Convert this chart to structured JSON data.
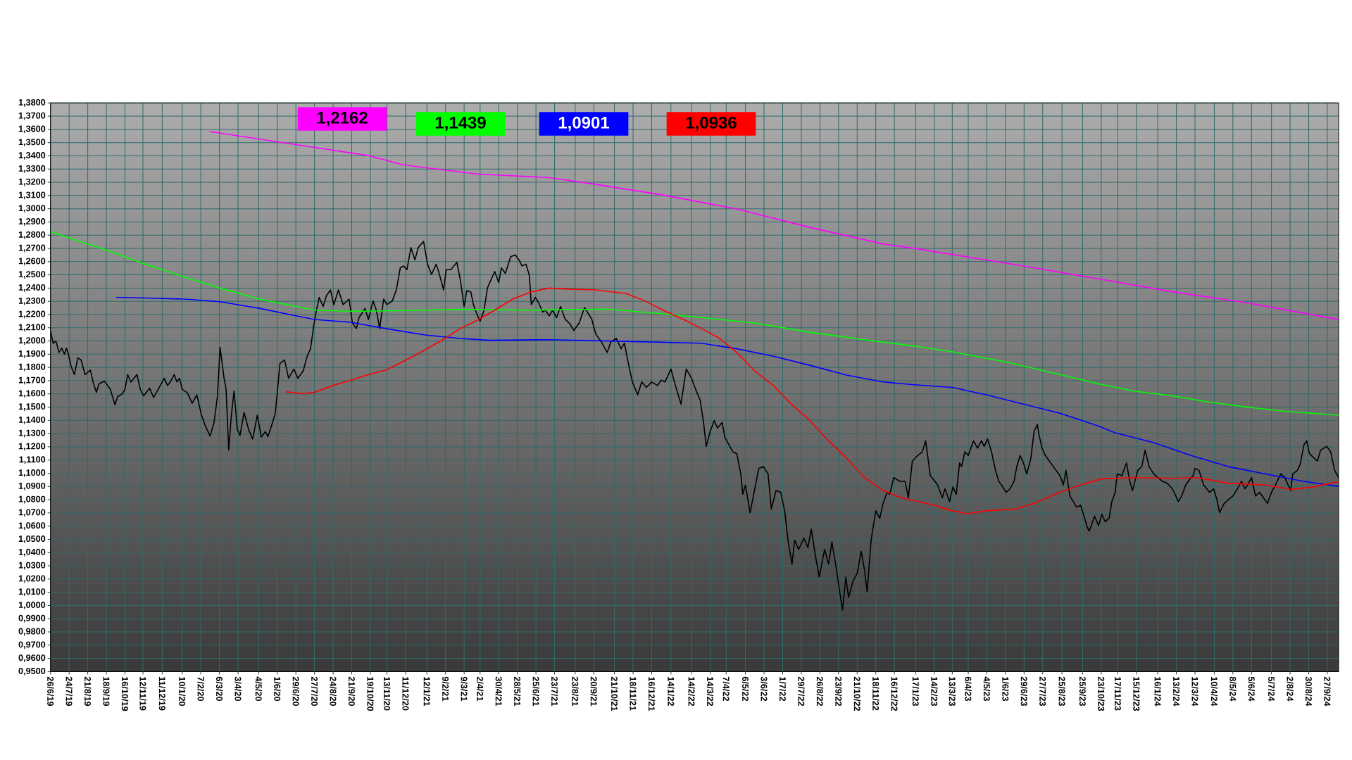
{
  "chart_data": {
    "type": "line",
    "grid": true,
    "xlim": [
      "2019-06-26",
      "2024-10-14"
    ],
    "ylim": [
      0.95,
      1.38
    ],
    "xticks": [
      {
        "value": "2019-06-26",
        "label": "26/6/19"
      },
      {
        "value": "2019-07-24",
        "label": "24/7/19"
      },
      {
        "value": "2019-08-21",
        "label": "21/8/19"
      },
      {
        "value": "2019-09-18",
        "label": "18/9/19"
      },
      {
        "value": "2019-10-16",
        "label": "16/10/19"
      },
      {
        "value": "2019-11-12",
        "label": "12/11/19"
      },
      {
        "value": "2019-12-11",
        "label": "11/12/19"
      },
      {
        "value": "2020-01-10",
        "label": "10/1/20"
      },
      {
        "value": "2020-02-07",
        "label": "7/2/20"
      },
      {
        "value": "2020-03-06",
        "label": "6/3/20"
      },
      {
        "value": "2020-04-03",
        "label": "3/4/20"
      },
      {
        "value": "2020-05-04",
        "label": "4/5/20"
      },
      {
        "value": "2020-06-01",
        "label": "1/6/20"
      },
      {
        "value": "2020-06-29",
        "label": "29/6/20"
      },
      {
        "value": "2020-07-27",
        "label": "27/7/20"
      },
      {
        "value": "2020-08-24",
        "label": "24/8/20"
      },
      {
        "value": "2020-09-21",
        "label": "21/9/20"
      },
      {
        "value": "2020-10-19",
        "label": "19/10/20"
      },
      {
        "value": "2020-11-13",
        "label": "13/11/20"
      },
      {
        "value": "2020-12-11",
        "label": "11/12/20"
      },
      {
        "value": "2021-01-12",
        "label": "12/1/21"
      },
      {
        "value": "2021-02-09",
        "label": "9/2/21"
      },
      {
        "value": "2021-03-09",
        "label": "9/3/21"
      },
      {
        "value": "2021-04-02",
        "label": "2/4/21"
      },
      {
        "value": "2021-04-30",
        "label": "30/4/21"
      },
      {
        "value": "2021-05-28",
        "label": "28/5/21"
      },
      {
        "value": "2021-06-25",
        "label": "25/6/21"
      },
      {
        "value": "2021-07-23",
        "label": "23/7/21"
      },
      {
        "value": "2021-08-23",
        "label": "23/8/21"
      },
      {
        "value": "2021-09-20",
        "label": "20/9/21"
      },
      {
        "value": "2021-10-21",
        "label": "21/10/21"
      },
      {
        "value": "2021-11-18",
        "label": "18/11/21"
      },
      {
        "value": "2021-12-16",
        "label": "16/12/21"
      },
      {
        "value": "2022-01-14",
        "label": "14/1/22"
      },
      {
        "value": "2022-02-14",
        "label": "14/2/22"
      },
      {
        "value": "2022-03-14",
        "label": "14/3/22"
      },
      {
        "value": "2022-04-07",
        "label": "7/4/22"
      },
      {
        "value": "2022-05-06",
        "label": "6/5/22"
      },
      {
        "value": "2022-06-03",
        "label": "3/6/22"
      },
      {
        "value": "2022-07-01",
        "label": "1/7/22"
      },
      {
        "value": "2022-07-29",
        "label": "29/7/22"
      },
      {
        "value": "2022-08-26",
        "label": "26/8/22"
      },
      {
        "value": "2022-09-23",
        "label": "23/9/22"
      },
      {
        "value": "2022-10-21",
        "label": "21/10/22"
      },
      {
        "value": "2022-11-18",
        "label": "18/11/22"
      },
      {
        "value": "2022-12-16",
        "label": "16/12/22"
      },
      {
        "value": "2023-01-17",
        "label": "17/1/23"
      },
      {
        "value": "2023-02-14",
        "label": "14/2/23"
      },
      {
        "value": "2023-03-13",
        "label": "13/3/23"
      },
      {
        "value": "2023-04-06",
        "label": "6/4/23"
      },
      {
        "value": "2023-05-04",
        "label": "4/5/23"
      },
      {
        "value": "2023-06-01",
        "label": "1/6/23"
      },
      {
        "value": "2023-06-29",
        "label": "29/6/23"
      },
      {
        "value": "2023-07-27",
        "label": "27/7/23"
      },
      {
        "value": "2023-08-25",
        "label": "25/8/23"
      },
      {
        "value": "2023-09-25",
        "label": "25/9/23"
      },
      {
        "value": "2023-10-23",
        "label": "23/10/23"
      },
      {
        "value": "2023-11-17",
        "label": "17/11/23"
      },
      {
        "value": "2023-12-15",
        "label": "15/12/23"
      },
      {
        "value": "2024-01-16",
        "label": "16/1/24"
      },
      {
        "value": "2024-02-13",
        "label": "13/2/24"
      },
      {
        "value": "2024-03-12",
        "label": "12/3/24"
      },
      {
        "value": "2024-04-10",
        "label": "10/4/24"
      },
      {
        "value": "2024-05-08",
        "label": "8/5/24"
      },
      {
        "value": "2024-06-05",
        "label": "5/6/24"
      },
      {
        "value": "2024-07-05",
        "label": "5/7/24"
      },
      {
        "value": "2024-08-02",
        "label": "2/8/24"
      },
      {
        "value": "2024-08-30",
        "label": "30/8/24"
      },
      {
        "value": "2024-09-27",
        "label": "27/9/24"
      }
    ],
    "yticks": [
      {
        "value": 0.95,
        "label": "0,9500"
      },
      {
        "value": 0.96,
        "label": "0,9600"
      },
      {
        "value": 0.97,
        "label": "0,9700"
      },
      {
        "value": 0.98,
        "label": "0,9800"
      },
      {
        "value": 0.99,
        "label": "0,9900"
      },
      {
        "value": 1.0,
        "label": "1,0000"
      },
      {
        "value": 1.01,
        "label": "1,0100"
      },
      {
        "value": 1.02,
        "label": "1,0200"
      },
      {
        "value": 1.03,
        "label": "1,0300"
      },
      {
        "value": 1.04,
        "label": "1,0400"
      },
      {
        "value": 1.05,
        "label": "1,0500"
      },
      {
        "value": 1.06,
        "label": "1,0600"
      },
      {
        "value": 1.07,
        "label": "1,0700"
      },
      {
        "value": 1.08,
        "label": "1,0800"
      },
      {
        "value": 1.09,
        "label": "1,0900"
      },
      {
        "value": 1.1,
        "label": "1,1000"
      },
      {
        "value": 1.11,
        "label": "1,1100"
      },
      {
        "value": 1.12,
        "label": "1,1200"
      },
      {
        "value": 1.13,
        "label": "1,1300"
      },
      {
        "value": 1.14,
        "label": "1,1400"
      },
      {
        "value": 1.15,
        "label": "1,1500"
      },
      {
        "value": 1.16,
        "label": "1,1600"
      },
      {
        "value": 1.17,
        "label": "1,1700"
      },
      {
        "value": 1.18,
        "label": "1,1800"
      },
      {
        "value": 1.19,
        "label": "1,1900"
      },
      {
        "value": 1.2,
        "label": "1,2000"
      },
      {
        "value": 1.21,
        "label": "1,2100"
      },
      {
        "value": 1.22,
        "label": "1,2200"
      },
      {
        "value": 1.23,
        "label": "1,2300"
      },
      {
        "value": 1.24,
        "label": "1,2400"
      },
      {
        "value": 1.25,
        "label": "1,2500"
      },
      {
        "value": 1.26,
        "label": "1,2600"
      },
      {
        "value": 1.27,
        "label": "1,2700"
      },
      {
        "value": 1.28,
        "label": "1,2800"
      },
      {
        "value": 1.29,
        "label": "1,2900"
      },
      {
        "value": 1.3,
        "label": "1,3000"
      },
      {
        "value": 1.31,
        "label": "1,3100"
      },
      {
        "value": 1.32,
        "label": "1,3200"
      },
      {
        "value": 1.33,
        "label": "1,3300"
      },
      {
        "value": 1.34,
        "label": "1,3400"
      },
      {
        "value": 1.35,
        "label": "1,3500"
      },
      {
        "value": 1.36,
        "label": "1,3600"
      },
      {
        "value": 1.37,
        "label": "1,3700"
      },
      {
        "value": 1.38,
        "label": "1,3800"
      }
    ],
    "series": [
      {
        "color": "#000000",
        "x": [
          "2019-06-26",
          "2019-06-30",
          "2019-07-04",
          "2019-07-09",
          "2019-07-13",
          "2019-07-17",
          "2019-07-20",
          "2019-07-23",
          "2019-07-27",
          "2019-08-01",
          "2019-08-06",
          "2019-08-11",
          "2019-08-17",
          "2019-08-25",
          "2019-08-29",
          "2019-09-03",
          "2019-09-07",
          "2019-09-15",
          "2019-09-24",
          "2019-10-01",
          "2019-10-05",
          "2019-10-12",
          "2019-10-16",
          "2019-10-20",
          "2019-10-25",
          "2019-11-03",
          "2019-11-08",
          "2019-11-13",
          "2019-11-22",
          "2019-11-28",
          "2019-12-05",
          "2019-12-14",
          "2019-12-19",
          "2019-12-23",
          "2019-12-29",
          "2020-01-02",
          "2020-01-06",
          "2020-01-10",
          "2020-01-18",
          "2020-01-25",
          "2020-02-01",
          "2020-02-08",
          "2020-02-14",
          "2020-02-21",
          "2020-02-27",
          "2020-03-03",
          "2020-03-07",
          "2020-03-13",
          "2020-03-16",
          "2020-03-20",
          "2020-03-24",
          "2020-03-28",
          "2020-04-02",
          "2020-04-06",
          "2020-04-12",
          "2020-04-19",
          "2020-04-25",
          "2020-05-02",
          "2020-05-08",
          "2020-05-14",
          "2020-05-18",
          "2020-05-24",
          "2020-05-29",
          "2020-06-02",
          "2020-06-05",
          "2020-06-12",
          "2020-06-18",
          "2020-06-26",
          "2020-07-02",
          "2020-07-10",
          "2020-07-16",
          "2020-07-21",
          "2020-07-26",
          "2020-07-30",
          "2020-08-03",
          "2020-08-09",
          "2020-08-14",
          "2020-08-20",
          "2020-08-25",
          "2020-09-01",
          "2020-09-08",
          "2020-09-17",
          "2020-09-22",
          "2020-09-28",
          "2020-10-02",
          "2020-10-11",
          "2020-10-16",
          "2020-10-23",
          "2020-10-28",
          "2020-11-02",
          "2020-11-08",
          "2020-11-13",
          "2020-11-21",
          "2020-11-27",
          "2020-12-03",
          "2020-12-08",
          "2020-12-13",
          "2020-12-19",
          "2020-12-25",
          "2020-12-30",
          "2021-01-07",
          "2021-01-13",
          "2021-01-19",
          "2021-01-26",
          "2021-01-30",
          "2021-02-06",
          "2021-02-10",
          "2021-02-17",
          "2021-02-26",
          "2021-03-03",
          "2021-03-09",
          "2021-03-13",
          "2021-03-19",
          "2021-03-23",
          "2021-03-28",
          "2021-04-02",
          "2021-04-08",
          "2021-04-13",
          "2021-04-19",
          "2021-04-24",
          "2021-04-30",
          "2021-05-04",
          "2021-05-10",
          "2021-05-18",
          "2021-05-25",
          "2021-05-31",
          "2021-06-04",
          "2021-06-10",
          "2021-06-15",
          "2021-06-18",
          "2021-06-24",
          "2021-06-29",
          "2021-07-05",
          "2021-07-09",
          "2021-07-15",
          "2021-07-20",
          "2021-07-26",
          "2021-08-01",
          "2021-08-08",
          "2021-08-14",
          "2021-08-21",
          "2021-08-29",
          "2021-09-06",
          "2021-09-12",
          "2021-09-17",
          "2021-09-23",
          "2021-10-01",
          "2021-10-10",
          "2021-10-16",
          "2021-10-24",
          "2021-10-31",
          "2021-11-05",
          "2021-11-11",
          "2021-11-17",
          "2021-11-25",
          "2021-12-01",
          "2021-12-08",
          "2021-12-16",
          "2021-12-25",
          "2021-12-30",
          "2022-01-05",
          "2022-01-14",
          "2022-01-20",
          "2022-01-29",
          "2022-02-06",
          "2022-02-14",
          "2022-02-20",
          "2022-02-27",
          "2022-03-04",
          "2022-03-08",
          "2022-03-14",
          "2022-03-20",
          "2022-03-25",
          "2022-04-01",
          "2022-04-05",
          "2022-04-11",
          "2022-04-17",
          "2022-04-23",
          "2022-04-29",
          "2022-05-02",
          "2022-05-06",
          "2022-05-13",
          "2022-05-19",
          "2022-05-26",
          "2022-06-02",
          "2022-06-09",
          "2022-06-14",
          "2022-06-21",
          "2022-06-28",
          "2022-07-04",
          "2022-07-09",
          "2022-07-15",
          "2022-07-19",
          "2022-07-25",
          "2022-08-02",
          "2022-08-08",
          "2022-08-13",
          "2022-08-19",
          "2022-08-25",
          "2022-09-02",
          "2022-09-08",
          "2022-09-13",
          "2022-09-19",
          "2022-09-23",
          "2022-09-29",
          "2022-10-04",
          "2022-10-08",
          "2022-10-15",
          "2022-10-21",
          "2022-10-27",
          "2022-11-01",
          "2022-11-05",
          "2022-11-11",
          "2022-11-18",
          "2022-11-24",
          "2022-11-29",
          "2022-12-05",
          "2022-12-09",
          "2022-12-15",
          "2022-12-24",
          "2023-01-01",
          "2023-01-06",
          "2023-01-12",
          "2023-01-20",
          "2023-01-27",
          "2023-02-01",
          "2023-02-08",
          "2023-02-15",
          "2023-02-19",
          "2023-02-26",
          "2023-03-02",
          "2023-03-09",
          "2023-03-14",
          "2023-03-19",
          "2023-03-24",
          "2023-03-27",
          "2023-04-01",
          "2023-04-06",
          "2023-04-14",
          "2023-04-20",
          "2023-04-26",
          "2023-04-30",
          "2023-05-05",
          "2023-05-11",
          "2023-05-17",
          "2023-05-22",
          "2023-05-28",
          "2023-06-02",
          "2023-06-08",
          "2023-06-14",
          "2023-06-18",
          "2023-06-23",
          "2023-06-28",
          "2023-07-03",
          "2023-07-09",
          "2023-07-14",
          "2023-07-19",
          "2023-07-21",
          "2023-07-26",
          "2023-07-31",
          "2023-08-08",
          "2023-08-16",
          "2023-08-22",
          "2023-08-27",
          "2023-08-31",
          "2023-09-06",
          "2023-09-16",
          "2023-09-22",
          "2023-09-28",
          "2023-10-02",
          "2023-10-05",
          "2023-10-13",
          "2023-10-19",
          "2023-10-24",
          "2023-10-29",
          "2023-11-04",
          "2023-11-08",
          "2023-11-13",
          "2023-11-16",
          "2023-11-23",
          "2023-11-30",
          "2023-12-05",
          "2023-12-09",
          "2023-12-17",
          "2023-12-23",
          "2023-12-28",
          "2024-01-03",
          "2024-01-10",
          "2024-01-16",
          "2024-01-23",
          "2024-01-30",
          "2024-02-07",
          "2024-02-16",
          "2024-02-21",
          "2024-02-27",
          "2024-03-04",
          "2024-03-09",
          "2024-03-12",
          "2024-03-18",
          "2024-03-25",
          "2024-04-03",
          "2024-04-09",
          "2024-04-14",
          "2024-04-18",
          "2024-04-25",
          "2024-05-01",
          "2024-05-08",
          "2024-05-15",
          "2024-05-21",
          "2024-05-26",
          "2024-05-30",
          "2024-06-05",
          "2024-06-11",
          "2024-06-17",
          "2024-06-25",
          "2024-06-29",
          "2024-07-05",
          "2024-07-11",
          "2024-07-19",
          "2024-07-25",
          "2024-07-30",
          "2024-08-03",
          "2024-08-06",
          "2024-08-13",
          "2024-08-17",
          "2024-08-23",
          "2024-08-27",
          "2024-08-31",
          "2024-09-06",
          "2024-09-12",
          "2024-09-17",
          "2024-09-26",
          "2024-10-02",
          "2024-10-08",
          "2024-10-14"
        ],
        "values": [
          1.2074,
          1.1983,
          1.2,
          1.1913,
          1.1946,
          1.19,
          1.1946,
          1.19,
          1.1807,
          1.1746,
          1.1871,
          1.1857,
          1.1746,
          1.178,
          1.169,
          1.1612,
          1.1676,
          1.1696,
          1.1635,
          1.1518,
          1.158,
          1.16,
          1.1635,
          1.1746,
          1.169,
          1.1746,
          1.1635,
          1.1585,
          1.1643,
          1.1573,
          1.1635,
          1.1718,
          1.1663,
          1.169,
          1.1746,
          1.169,
          1.1718,
          1.1635,
          1.1607,
          1.1529,
          1.1593,
          1.144,
          1.1356,
          1.1281,
          1.1384,
          1.158,
          1.1952,
          1.1718,
          1.1635,
          1.1176,
          1.144,
          1.1621,
          1.1329,
          1.1287,
          1.146,
          1.1329,
          1.1259,
          1.144,
          1.1273,
          1.1315,
          1.1278,
          1.137,
          1.1453,
          1.1663,
          1.1829,
          1.1857,
          1.1718,
          1.1788,
          1.1718,
          1.1774,
          1.1885,
          1.1941,
          1.2122,
          1.2233,
          1.233,
          1.2261,
          1.2344,
          1.2386,
          1.2275,
          1.2386,
          1.2275,
          1.2317,
          1.2136,
          1.2094,
          1.2177,
          1.2247,
          1.2163,
          1.2303,
          1.2233,
          1.2094,
          1.2317,
          1.2275,
          1.2303,
          1.2386,
          1.2553,
          1.2567,
          1.254,
          1.2706,
          1.2614,
          1.2706,
          1.2753,
          1.2581,
          1.2503,
          1.2581,
          1.252,
          1.2386,
          1.2539,
          1.2539,
          1.2595,
          1.247,
          1.2261,
          1.2381,
          1.2372,
          1.2275,
          1.2205,
          1.215,
          1.2233,
          1.24,
          1.247,
          1.2525,
          1.2442,
          1.2553,
          1.2511,
          1.2637,
          1.2651,
          1.2609,
          1.2567,
          1.2581,
          1.2497,
          1.2275,
          1.233,
          1.2289,
          1.2219,
          1.2233,
          1.2191,
          1.2233,
          1.2177,
          1.2261,
          1.2163,
          1.2136,
          1.208,
          1.2136,
          1.2253,
          1.2205,
          1.2163,
          1.2052,
          1.1997,
          1.1913,
          1.1997,
          1.2019,
          1.1941,
          1.1983,
          1.1829,
          1.169,
          1.1593,
          1.169,
          1.1649,
          1.169,
          1.1663,
          1.1704,
          1.169,
          1.1788,
          1.1676,
          1.1523,
          1.1788,
          1.1718,
          1.1635,
          1.1551,
          1.1384,
          1.1203,
          1.1315,
          1.1398,
          1.1342,
          1.1384,
          1.1273,
          1.1217,
          1.1162,
          1.1148,
          1.0995,
          1.0842,
          1.0911,
          1.0702,
          1.0856,
          1.1036,
          1.105,
          1.0995,
          1.073,
          1.0869,
          1.0856,
          1.0716,
          1.0494,
          1.0313,
          1.0494,
          1.0424,
          1.0508,
          1.0438,
          1.0578,
          1.0382,
          1.0215,
          1.0424,
          1.0313,
          1.048,
          1.0299,
          1.016,
          0.9965,
          1.0215,
          1.0062,
          1.0187,
          1.0243,
          1.041,
          1.0271,
          1.0104,
          1.0494,
          1.0716,
          1.066,
          1.0772,
          1.0856,
          1.0841,
          1.0967,
          1.0939,
          1.0939,
          1.0814,
          1.1092,
          1.1134,
          1.1162,
          1.1245,
          1.0981,
          1.0939,
          1.0911,
          1.0814,
          1.0883,
          1.0786,
          1.0897,
          1.0841,
          1.1078,
          1.105,
          1.1162,
          1.1134,
          1.1245,
          1.119,
          1.1245,
          1.1203,
          1.1259,
          1.1162,
          1.1022,
          1.0939,
          1.0897,
          1.0856,
          1.0883,
          1.0939,
          1.105,
          1.1134,
          1.1078,
          1.0995,
          1.1106,
          1.1315,
          1.137,
          1.1301,
          1.119,
          1.1134,
          1.1078,
          1.1022,
          1.0981,
          1.0911,
          1.1022,
          1.0828,
          1.0744,
          1.0758,
          1.0661,
          1.0591,
          1.0563,
          1.0675,
          1.0605,
          1.0689,
          1.0633,
          1.0661,
          1.0786,
          1.0856,
          1.0995,
          1.0981,
          1.1078,
          1.0939,
          1.0869,
          1.1022,
          1.105,
          1.1175,
          1.105,
          1.0995,
          1.0967,
          1.0939,
          1.0925,
          1.0883,
          1.0786,
          1.0828,
          1.0911,
          1.0953,
          1.0981,
          1.1036,
          1.1022,
          1.0911,
          1.0856,
          1.0883,
          1.08,
          1.0702,
          1.0772,
          1.08,
          1.0828,
          1.0883,
          1.0939,
          1.0883,
          1.0911,
          1.0967,
          1.0828,
          1.0856,
          1.08,
          1.0772,
          1.0856,
          1.0911,
          1.0995,
          1.0967,
          1.0911,
          1.0869,
          1.0995,
          1.1022,
          1.1064,
          1.1217,
          1.1245,
          1.1148,
          1.112,
          1.1092,
          1.1175,
          1.1203,
          1.1162,
          1.1022,
          1.0967
        ]
      },
      {
        "color": "#ff00ff",
        "x": [
          "2020-02-21",
          "2020-06-29",
          "2020-10-16",
          "2020-12-07",
          "2021-03-28",
          "2021-07-15",
          "2021-09-12",
          "2022-01-02",
          "2022-04-23",
          "2022-08-11",
          "2022-11-29",
          "2023-01-18",
          "2023-06-28",
          "2023-10-19",
          "2024-02-07",
          "2024-05-29",
          "2024-10-14"
        ],
        "values": [
          1.3583,
          1.3485,
          1.3402,
          1.3332,
          1.3263,
          1.3235,
          1.3193,
          1.3104,
          1.2998,
          1.2859,
          1.2734,
          1.2698,
          1.2567,
          1.247,
          1.2372,
          1.2289,
          1.2162
        ]
      },
      {
        "color": "#00ff00",
        "x": [
          "2019-06-26",
          "2019-09-24",
          "2019-11-16",
          "2020-01-13",
          "2020-03-07",
          "2020-05-05",
          "2020-06-29",
          "2020-07-27",
          "2020-09-20",
          "2020-11-11",
          "2021-01-07",
          "2021-03-03",
          "2021-06-18",
          "2021-10-10",
          "2022-01-02",
          "2022-03-01",
          "2022-05-20",
          "2022-08-11",
          "2022-11-01",
          "2023-01-18",
          "2023-03-13",
          "2023-05-31",
          "2023-08-22",
          "2023-10-19",
          "2023-12-11",
          "2024-02-07",
          "2024-04-03",
          "2024-05-29",
          "2024-07-25",
          "2024-10-14"
        ],
        "values": [
          1.2826,
          1.2678,
          1.2581,
          1.2484,
          1.24,
          1.2317,
          1.2261,
          1.2233,
          1.2225,
          1.2228,
          1.2233,
          1.2239,
          1.2233,
          1.2241,
          1.2205,
          1.2177,
          1.2136,
          1.2066,
          1.201,
          1.196,
          1.1918,
          1.1843,
          1.1746,
          1.1676,
          1.1621,
          1.1585,
          1.1537,
          1.1501,
          1.1468,
          1.1439
        ]
      },
      {
        "color": "#0000ff",
        "x": [
          "2019-10-03",
          "2019-11-16",
          "2020-01-13",
          "2020-03-07",
          "2020-05-05",
          "2020-06-29",
          "2020-07-27",
          "2020-09-20",
          "2020-11-11",
          "2021-01-07",
          "2021-03-03",
          "2021-04-17",
          "2021-07-15",
          "2021-11-08",
          "2022-03-01",
          "2022-04-23",
          "2022-06-17",
          "2022-08-11",
          "2022-10-06",
          "2022-11-29",
          "2023-01-18",
          "2023-03-13",
          "2023-05-03",
          "2023-06-28",
          "2023-08-22",
          "2023-10-19",
          "2023-11-13",
          "2024-01-10",
          "2024-03-06",
          "2024-05-01",
          "2024-06-26",
          "2024-08-22",
          "2024-10-14"
        ],
        "values": [
          1.233,
          1.2325,
          1.2317,
          1.2297,
          1.2247,
          1.2191,
          1.2163,
          1.2141,
          1.2094,
          1.2047,
          1.2019,
          1.2005,
          1.201,
          1.1997,
          1.1983,
          1.1941,
          1.1885,
          1.1816,
          1.1741,
          1.169,
          1.1668,
          1.1649,
          1.1593,
          1.1523,
          1.1454,
          1.1356,
          1.1306,
          1.1231,
          1.1134,
          1.105,
          1.0995,
          1.0939,
          1.0901
        ]
      },
      {
        "color": "#ff0000",
        "x": [
          "2020-06-15",
          "2020-07-10",
          "2020-07-27",
          "2020-08-23",
          "2020-09-20",
          "2020-10-16",
          "2020-11-11",
          "2020-12-07",
          "2021-01-07",
          "2021-02-05",
          "2021-03-03",
          "2021-03-28",
          "2021-04-24",
          "2021-05-21",
          "2021-06-18",
          "2021-07-15",
          "2021-08-14",
          "2021-09-23",
          "2021-11-08",
          "2021-12-06",
          "2022-01-02",
          "2022-02-02",
          "2022-03-01",
          "2022-03-27",
          "2022-04-23",
          "2022-05-20",
          "2022-06-17",
          "2022-07-14",
          "2022-08-11",
          "2022-09-08",
          "2022-10-04",
          "2022-11-01",
          "2022-11-29",
          "2022-12-27",
          "2023-01-18",
          "2023-02-14",
          "2023-03-13",
          "2023-04-06",
          "2023-05-03",
          "2023-06-16",
          "2023-07-14",
          "2023-08-22",
          "2023-09-22",
          "2023-10-24",
          "2023-12-11",
          "2024-02-07",
          "2024-03-16",
          "2024-05-01",
          "2024-06-26",
          "2024-08-05",
          "2024-09-06",
          "2024-10-14"
        ],
        "values": [
          1.1615,
          1.1601,
          1.1612,
          1.1663,
          1.1704,
          1.1746,
          1.1779,
          1.1843,
          1.1927,
          1.201,
          1.2094,
          1.2155,
          1.2233,
          1.2317,
          1.2372,
          1.24,
          1.2392,
          1.2386,
          1.2358,
          1.2303,
          1.2233,
          1.2163,
          1.2094,
          1.2024,
          1.1913,
          1.1774,
          1.1663,
          1.1523,
          1.1398,
          1.1245,
          1.112,
          1.0967,
          1.0869,
          1.0814,
          1.079,
          1.0758,
          1.0716,
          1.0694,
          1.0716,
          1.073,
          1.0772,
          1.0856,
          1.0911,
          1.0958,
          1.0967,
          1.0961,
          1.0967,
          1.0925,
          1.0911,
          1.0878,
          1.0897,
          1.0936
        ]
      }
    ],
    "annotations": [
      "1,2162",
      "1,1439",
      "1,0901",
      "1,0936"
    ]
  }
}
